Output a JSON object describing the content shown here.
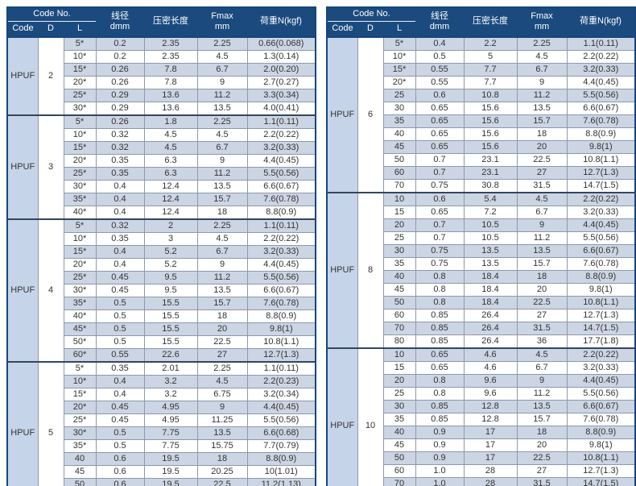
{
  "colors": {
    "header_bg": "#1b4a7e",
    "header_text": "#ffffff",
    "row_shaded": "#ccd5e3",
    "code_cell_bg": "#c6d4e9",
    "outer_border": "#16467c",
    "inner_border": "#8b99ad",
    "group_divider": "#33465e",
    "body_text": "#333333"
  },
  "header": {
    "code_no": "Code No.",
    "code": "Code",
    "d": "D",
    "l": "L",
    "wire_line1": "线径",
    "wire_line2": "dmm",
    "compressed_length": "压密长度",
    "fmax_line1": "Fmax",
    "fmax_line2": "mm",
    "load": "荷重N(kgf)"
  },
  "tables": [
    {
      "groups": [
        {
          "code": "HPUF",
          "d": "2",
          "rows": [
            [
              "5*",
              "0.2",
              "2.35",
              "2.25",
              "0.66(0.068)"
            ],
            [
              "10*",
              "0.2",
              "2.35",
              "4.5",
              "1.3(0.14)"
            ],
            [
              "15*",
              "0.26",
              "7.8",
              "6.7",
              "2.0(0.20)"
            ],
            [
              "20*",
              "0.26",
              "7.8",
              "9",
              "2.7(0.27)"
            ],
            [
              "25*",
              "0.29",
              "13.6",
              "11.2",
              "3.3(0.34)"
            ],
            [
              "30*",
              "0.29",
              "13.6",
              "13.5",
              "4.0(0.41)"
            ]
          ]
        },
        {
          "code": "HPUF",
          "d": "3",
          "rows": [
            [
              "5*",
              "0.26",
              "1.8",
              "2.25",
              "1.1(0.11)"
            ],
            [
              "10*",
              "0.32",
              "4.5",
              "4.5",
              "2.2(0.22)"
            ],
            [
              "15*",
              "0.32",
              "4.5",
              "6.7",
              "3.2(0.33)"
            ],
            [
              "20*",
              "0.35",
              "6.3",
              "9",
              "4.4(0.45)"
            ],
            [
              "25*",
              "0.35",
              "6.3",
              "11.2",
              "5.5(0.56)"
            ],
            [
              "30*",
              "0.4",
              "12.4",
              "13.5",
              "6.6(0.67)"
            ],
            [
              "35*",
              "0.4",
              "12.4",
              "15.7",
              "7.6(0.78)"
            ],
            [
              "40*",
              "0.4",
              "12.4",
              "18",
              "8.8(0.9)"
            ]
          ]
        },
        {
          "code": "HPUF",
          "d": "4",
          "rows": [
            [
              "5*",
              "0.32",
              "2",
              "2.25",
              "1.1(0.11)"
            ],
            [
              "10*",
              "0.35",
              "3",
              "4.5",
              "2.2(0.22)"
            ],
            [
              "15*",
              "0.4",
              "5.2",
              "6.7",
              "3.2(0.33)"
            ],
            [
              "20*",
              "0.4",
              "5.2",
              "9",
              "4.4(0.45)"
            ],
            [
              "25*",
              "0.45",
              "9.5",
              "11.2",
              "5.5(0.56)"
            ],
            [
              "30*",
              "0.45",
              "9.5",
              "13.5",
              "6.6(0.67)"
            ],
            [
              "35*",
              "0.5",
              "15.5",
              "15.7",
              "7.6(0.78)"
            ],
            [
              "40*",
              "0.5",
              "15.5",
              "18",
              "8.8(0.9)"
            ],
            [
              "45*",
              "0.5",
              "15.5",
              "20",
              "9.8(1)"
            ],
            [
              "50*",
              "0.5",
              "15.5",
              "22.5",
              "10.8(1.1)"
            ],
            [
              "60*",
              "0.55",
              "22.6",
              "27",
              "12.7(1.3)"
            ]
          ]
        },
        {
          "code": "HPUF",
          "d": "5",
          "rows": [
            [
              "5*",
              "0.35",
              "2.01",
              "2.25",
              "1.1(0.11)"
            ],
            [
              "10*",
              "0.4",
              "3.2",
              "4.5",
              "2.2(0.23)"
            ],
            [
              "15*",
              "0.4",
              "3.2",
              "6.75",
              "3.2(0.34)"
            ],
            [
              "20*",
              "0.45",
              "4.95",
              "9",
              "4.4(0.45)"
            ],
            [
              "25*",
              "0.45",
              "4.95",
              "11.25",
              "5.5(0.56)"
            ],
            [
              "30*",
              "0.5",
              "7.75",
              "13.5",
              "6.6(0.68)"
            ],
            [
              "35*",
              "0.5",
              "7.75",
              "15.75",
              "7.7(0.79)"
            ],
            [
              "40",
              "0.6",
              "19.5",
              "18",
              "8.8(0.9)"
            ],
            [
              "45",
              "0.6",
              "19.5",
              "20.25",
              "10(1.01)"
            ],
            [
              "50",
              "0.6",
              "19.5",
              "22.5",
              "11.2(1.13)"
            ],
            [
              "60",
              "0.65",
              "27.95",
              "27",
              "13.4(1.35)"
            ]
          ]
        }
      ]
    },
    {
      "groups": [
        {
          "code": "HPUF",
          "d": "6",
          "rows": [
            [
              "5*",
              "0.4",
              "2.2",
              "2.25",
              "1.1(0.11)"
            ],
            [
              "10*",
              "0.5",
              "5",
              "4.5",
              "2.2(0.22)"
            ],
            [
              "15*",
              "0.55",
              "7.7",
              "6.7",
              "3.2(0.33)"
            ],
            [
              "20*",
              "0.55",
              "7.7",
              "9",
              "4.4(0.45)"
            ],
            [
              "25",
              "0.6",
              "10.8",
              "11.2",
              "5.5(0.56)"
            ],
            [
              "30",
              "0.65",
              "15.6",
              "13.5",
              "6.6(0.67)"
            ],
            [
              "35",
              "0.65",
              "15.6",
              "15.7",
              "7.6(0.78)"
            ],
            [
              "40",
              "0.65",
              "15.6",
              "18",
              "8.8(0.9)"
            ],
            [
              "45",
              "0.65",
              "15.6",
              "20",
              "9.8(1)"
            ],
            [
              "50",
              "0.7",
              "23.1",
              "22.5",
              "10.8(1.1)"
            ],
            [
              "60",
              "0.7",
              "23.1",
              "27",
              "12.7(1.3)"
            ],
            [
              "70",
              "0.75",
              "30.8",
              "31.5",
              "14.7(1.5)"
            ]
          ]
        },
        {
          "code": "HPUF",
          "d": "8",
          "rows": [
            [
              "10",
              "0.6",
              "5.4",
              "4.5",
              "2.2(0.22)"
            ],
            [
              "15",
              "0.65",
              "7.2",
              "6.7",
              "3.2(0.33)"
            ],
            [
              "20",
              "0.7",
              "10.5",
              "9",
              "4.4(0.45)"
            ],
            [
              "25",
              "0.7",
              "10.5",
              "11.2",
              "5.5(0.56)"
            ],
            [
              "30",
              "0.75",
              "13.5",
              "13.5",
              "6.6(0.67)"
            ],
            [
              "35",
              "0.75",
              "13.5",
              "15.7",
              "7.6(0.78)"
            ],
            [
              "40",
              "0.8",
              "18.4",
              "18",
              "8.8(0.9)"
            ],
            [
              "45",
              "0.8",
              "18.4",
              "20",
              "9.8(1)"
            ],
            [
              "50",
              "0.8",
              "18.4",
              "22.5",
              "10.8(1.1)"
            ],
            [
              "60",
              "0.85",
              "26.4",
              "27",
              "12.7(1.3)"
            ],
            [
              "70",
              "0.85",
              "26.4",
              "31.5",
              "14.7(1.5)"
            ],
            [
              "80",
              "0.85",
              "26.4",
              "36",
              "17.7(1.8)"
            ]
          ]
        },
        {
          "code": "HPUF",
          "d": "10",
          "rows": [
            [
              "10",
              "0.65",
              "4.6",
              "4.5",
              "2.2(0.22)"
            ],
            [
              "15",
              "0.65",
              "4.6",
              "6.7",
              "3.2(0.33)"
            ],
            [
              "20",
              "0.8",
              "9.6",
              "9",
              "4.4(0.45)"
            ],
            [
              "25",
              "0.8",
              "9.6",
              "11.2",
              "5.5(0.56)"
            ],
            [
              "30",
              "0.85",
              "12.8",
              "13.5",
              "6.6(0.67)"
            ],
            [
              "35",
              "0.85",
              "12.8",
              "15.7",
              "7.6(0.78)"
            ],
            [
              "40",
              "0.9",
              "17",
              "18",
              "8.8(0.9)"
            ],
            [
              "45",
              "0.9",
              "17",
              "20",
              "9.8(1)"
            ],
            [
              "50",
              "0.9",
              "17",
              "22.5",
              "10.8(1.1)"
            ],
            [
              "60",
              "1.0",
              "28",
              "27",
              "12.7(1.3)"
            ],
            [
              "70",
              "1.0",
              "28",
              "31.5",
              "14.7(1.5)"
            ],
            [
              "80",
              "1.0",
              "28",
              "36",
              "17.7(1.8)"
            ]
          ]
        }
      ]
    }
  ]
}
